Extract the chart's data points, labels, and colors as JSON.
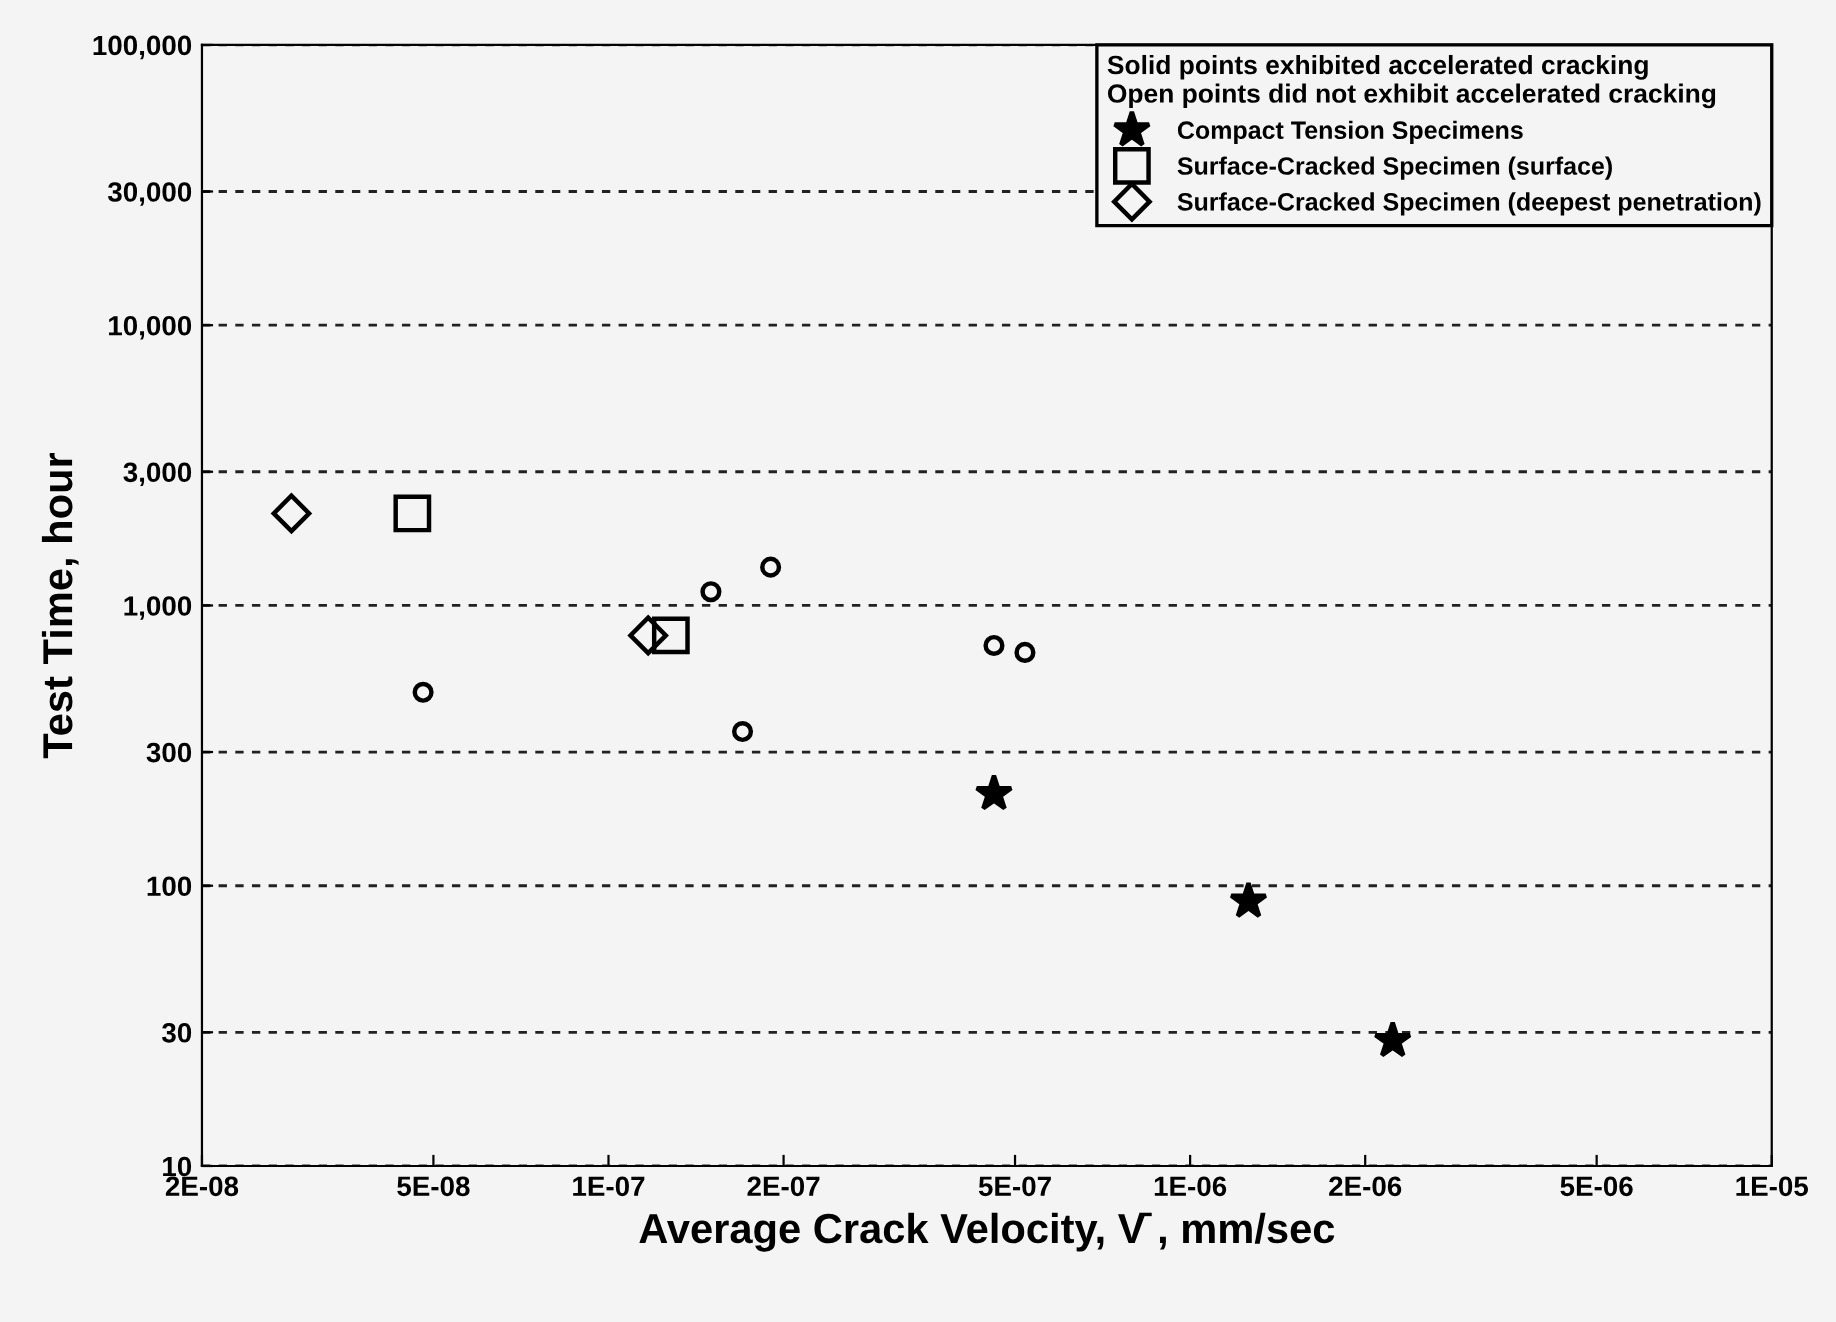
{
  "chart_data": {
    "type": "scatter",
    "xlabel": "Average Crack Velocity, V̄ , mm/sec",
    "ylabel": "Test Time, hour",
    "legend_title": "Solid points exhibited accelerated cracking\nOpen points did not exhibit accelerated cracking",
    "log": "xy",
    "grid": "y",
    "legend": "top right",
    "xlim": [
      2e-08,
      1e-05
    ],
    "ylim": [
      10,
      100000
    ],
    "xticks": [
      {
        "value": 2e-08,
        "label": "2E-08"
      },
      {
        "value": 5e-08,
        "label": "5E-08"
      },
      {
        "value": 1e-07,
        "label": "1E-07"
      },
      {
        "value": 2e-07,
        "label": "2E-07"
      },
      {
        "value": 5e-07,
        "label": "5E-07"
      },
      {
        "value": 1e-06,
        "label": "1E-06"
      },
      {
        "value": 2e-06,
        "label": "2E-06"
      },
      {
        "value": 5e-06,
        "label": "5E-06"
      },
      {
        "value": 1e-05,
        "label": "1E-05"
      }
    ],
    "yticks": [
      10,
      30,
      100,
      300,
      {
        "value": 1000,
        "label": "1,000"
      },
      {
        "value": 3000,
        "label": "3,000"
      },
      {
        "value": 10000,
        "label": "10,000"
      },
      {
        "value": 30000,
        "label": "30,000"
      },
      {
        "value": 100000,
        "label": "100,000"
      }
    ],
    "series": [
      {
        "color": "#000000",
        "marker": "circle",
        "x": [
          4.8e-08,
          1.5e-07,
          1.9e-07,
          1.7e-07,
          4.6e-07,
          5.2e-07
        ],
        "values": [
          490,
          1120,
          1370,
          355,
          720,
          680
        ]
      },
      {
        "name": "Compact Tension Specimens",
        "color": "#000000",
        "marker": "star",
        "x": [
          4.6e-07,
          1.26e-06,
          2.23e-06
        ],
        "values": [
          213,
          88,
          28
        ]
      },
      {
        "name": "Surface-Cracked Specimen (surface)",
        "color": "#000000",
        "marker": "square",
        "x": [
          4.6e-08,
          1.28e-07
        ],
        "values": [
          2130,
          782
        ]
      },
      {
        "name": "Surface-Cracked Specimen (deepest penetration)",
        "color": "#000000",
        "marker": "diamond",
        "x": [
          2.85e-08,
          1.17e-07
        ],
        "values": [
          2130,
          782
        ]
      }
    ]
  }
}
